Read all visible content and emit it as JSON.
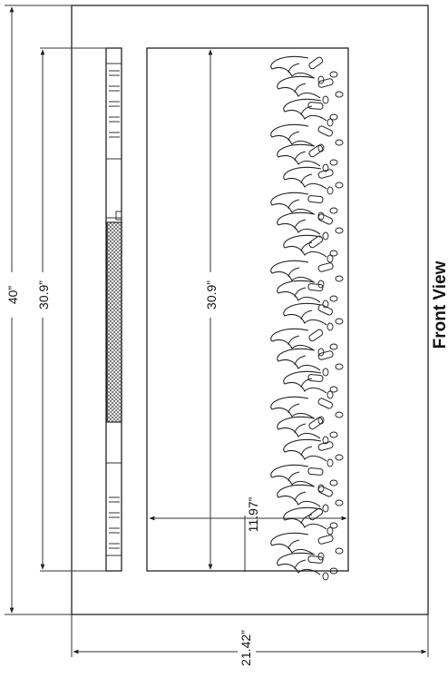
{
  "view_title": "Front View",
  "dimensions": {
    "overall_height": "40”",
    "opening_height_left": "30.9”",
    "opening_height_center": "30.9”",
    "flame_depth": "11.97”",
    "overall_width": "21.42”"
  }
}
